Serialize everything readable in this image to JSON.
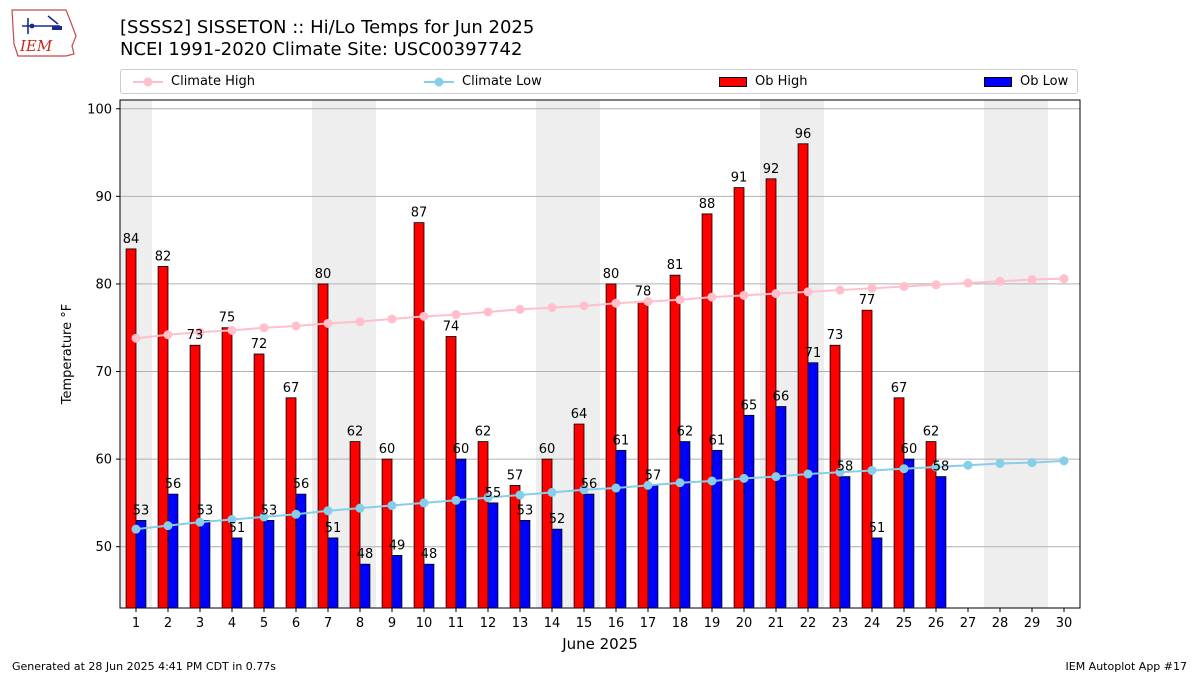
{
  "header": {
    "title_line1": "[SSSS2] SISSETON :: Hi/Lo Temps for Jun 2025",
    "title_line2": "NCEI 1991-2020 Climate Site: USC00397742",
    "logo_text": "IEM"
  },
  "legend": {
    "climate_high": "Climate High",
    "climate_low": "Climate Low",
    "ob_high": "Ob High",
    "ob_low": "Ob Low"
  },
  "footer": {
    "generated": "Generated at 28 Jun 2025 4:41 PM CDT in 0.77s",
    "app": "IEM Autoplot App #17"
  },
  "colors": {
    "ob_high": "#ff0000",
    "ob_low": "#0000ff",
    "climate_high": "#ffc0cb",
    "climate_low": "#87ceeb",
    "weekend_band": "#eeeeee"
  },
  "chart_data": {
    "type": "bar",
    "xlabel": "June 2025",
    "ylabel": "Temperature °F",
    "ylim": [
      43,
      101
    ],
    "yticks": [
      50,
      60,
      70,
      80,
      90,
      100
    ],
    "grid": "horizontal",
    "legend_position": "top",
    "categories": [
      "1",
      "2",
      "3",
      "4",
      "5",
      "6",
      "7",
      "8",
      "9",
      "10",
      "11",
      "12",
      "13",
      "14",
      "15",
      "16",
      "17",
      "18",
      "19",
      "20",
      "21",
      "22",
      "23",
      "24",
      "25",
      "26",
      "27",
      "28",
      "29",
      "30"
    ],
    "weekend_bands": [
      [
        1,
        1
      ],
      [
        7,
        8
      ],
      [
        14,
        15
      ],
      [
        21,
        22
      ],
      [
        28,
        29
      ]
    ],
    "series": [
      {
        "name": "Ob High",
        "kind": "bar",
        "values": [
          84,
          82,
          73,
          75,
          72,
          67,
          80,
          62,
          60,
          87,
          74,
          62,
          57,
          60,
          64,
          80,
          78,
          81,
          88,
          91,
          92,
          96,
          73,
          77,
          67,
          62,
          null,
          null,
          null,
          null
        ]
      },
      {
        "name": "Ob Low",
        "kind": "bar",
        "values": [
          53,
          56,
          53,
          51,
          53,
          56,
          51,
          48,
          49,
          48,
          60,
          55,
          53,
          52,
          56,
          61,
          57,
          62,
          61,
          65,
          66,
          71,
          58,
          51,
          60,
          58,
          null,
          null,
          null,
          null
        ]
      },
      {
        "name": "Climate High",
        "kind": "line",
        "values": [
          73.8,
          74.2,
          74.5,
          74.7,
          75.0,
          75.2,
          75.5,
          75.7,
          76.0,
          76.3,
          76.5,
          76.8,
          77.1,
          77.3,
          77.5,
          77.8,
          78.0,
          78.2,
          78.5,
          78.7,
          78.9,
          79.1,
          79.3,
          79.5,
          79.7,
          79.9,
          80.1,
          80.3,
          80.5,
          80.6
        ]
      },
      {
        "name": "Climate Low",
        "kind": "line",
        "values": [
          52.0,
          52.4,
          52.8,
          53.1,
          53.4,
          53.7,
          54.1,
          54.4,
          54.7,
          55.0,
          55.3,
          55.6,
          55.9,
          56.2,
          56.5,
          56.7,
          57.0,
          57.3,
          57.5,
          57.8,
          58.0,
          58.3,
          58.5,
          58.7,
          58.9,
          59.1,
          59.3,
          59.5,
          59.6,
          59.8
        ]
      }
    ]
  }
}
